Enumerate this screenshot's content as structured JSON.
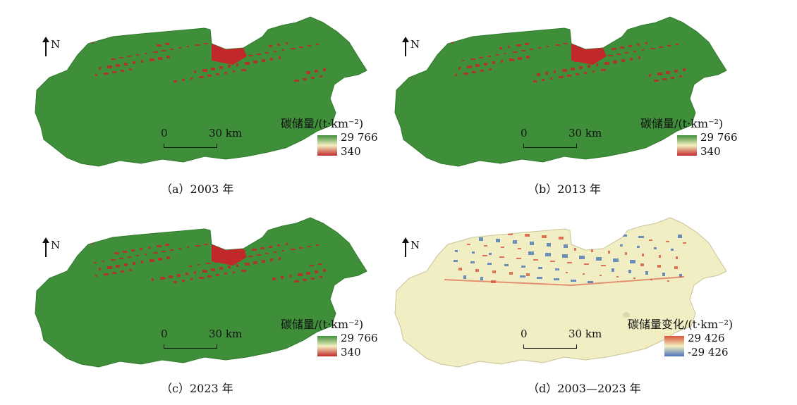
{
  "panels": [
    {
      "caption": "（a）2003 年",
      "legend_title": "碳储量/(t·km⁻²)",
      "legend_max": "29 766",
      "legend_min": "340",
      "north": "N",
      "scale_zero": "0",
      "scale_label": "30 km",
      "type": "storage"
    },
    {
      "caption": "（b）2013 年",
      "legend_title": "碳储量/(t·km⁻²)",
      "legend_max": "29 766",
      "legend_min": "340",
      "north": "N",
      "scale_zero": "0",
      "scale_label": "30 km",
      "type": "storage"
    },
    {
      "caption": "（c）2023 年",
      "legend_title": "碳储量/(t·km⁻²)",
      "legend_max": "29 766",
      "legend_min": "340",
      "north": "N",
      "scale_zero": "0",
      "scale_label": "30 km",
      "type": "storage"
    },
    {
      "caption": "（d）2003—2023 年",
      "legend_title": "碳储量变化/(t·km⁻²)",
      "legend_max": "29 426",
      "legend_min": "-29 426",
      "north": "N",
      "scale_zero": "0",
      "scale_label": "30 km",
      "type": "change"
    }
  ],
  "colors": {
    "high_storage": "#3f8f3a",
    "low_storage": "#c0282a",
    "change_base": "#f1eec4",
    "change_pos": "#d9553a",
    "change_neg": "#4a74b8"
  }
}
